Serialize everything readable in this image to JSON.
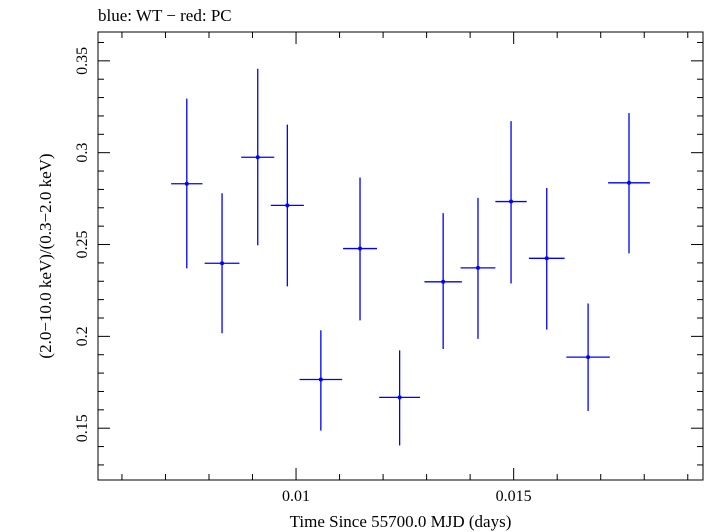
{
  "chart_data": {
    "type": "scatter",
    "title": "blue: WT − red: PC",
    "xlabel": "Time Since 55700.0 MJD (days)",
    "ylabel": "(2.0−10.0 keV)/(0.3−2.0 keV)",
    "xlim": [
      0.00545,
      0.01935
    ],
    "ylim": [
      0.1218,
      0.3657
    ],
    "x_ticks": [
      0.01,
      0.015
    ],
    "x_tick_labels": [
      "0.01",
      "0.015"
    ],
    "y_ticks": [
      0.15,
      0.2,
      0.25,
      0.3,
      0.35
    ],
    "y_tick_labels": [
      "0.15",
      "0.2",
      "0.25",
      "0.3",
      "0.35"
    ],
    "grid": false,
    "series": [
      {
        "color": "#0000ff",
        "points": [
          {
            "x": 0.00749,
            "y": 0.2831,
            "xerr": 0.00036,
            "ylo": 0.237,
            "yhi": 0.3294
          },
          {
            "x": 0.0083,
            "y": 0.2398,
            "xerr": 0.0004,
            "ylo": 0.2017,
            "yhi": 0.2779
          },
          {
            "x": 0.00912,
            "y": 0.2975,
            "xerr": 0.00038,
            "ylo": 0.2496,
            "yhi": 0.3457
          },
          {
            "x": 0.0098,
            "y": 0.2713,
            "xerr": 0.00038,
            "ylo": 0.2272,
            "yhi": 0.3153
          },
          {
            "x": 0.01057,
            "y": 0.1765,
            "xerr": 0.00049,
            "ylo": 0.1487,
            "yhi": 0.2033
          },
          {
            "x": 0.01147,
            "y": 0.2478,
            "xerr": 0.00039,
            "ylo": 0.2087,
            "yhi": 0.2865
          },
          {
            "x": 0.01238,
            "y": 0.1668,
            "xerr": 0.00047,
            "ylo": 0.1406,
            "yhi": 0.1924
          },
          {
            "x": 0.01338,
            "y": 0.2297,
            "xerr": 0.00043,
            "ylo": 0.1931,
            "yhi": 0.2671
          },
          {
            "x": 0.01418,
            "y": 0.2373,
            "xerr": 0.0004,
            "ylo": 0.1986,
            "yhi": 0.2754
          },
          {
            "x": 0.01494,
            "y": 0.2734,
            "xerr": 0.00036,
            "ylo": 0.2288,
            "yhi": 0.3172
          },
          {
            "x": 0.01576,
            "y": 0.2425,
            "xerr": 0.00041,
            "ylo": 0.2037,
            "yhi": 0.2808
          },
          {
            "x": 0.01671,
            "y": 0.1887,
            "xerr": 0.0005,
            "ylo": 0.1594,
            "yhi": 0.2179
          },
          {
            "x": 0.01765,
            "y": 0.2836,
            "xerr": 0.00048,
            "ylo": 0.2452,
            "yhi": 0.3216
          }
        ]
      }
    ]
  }
}
